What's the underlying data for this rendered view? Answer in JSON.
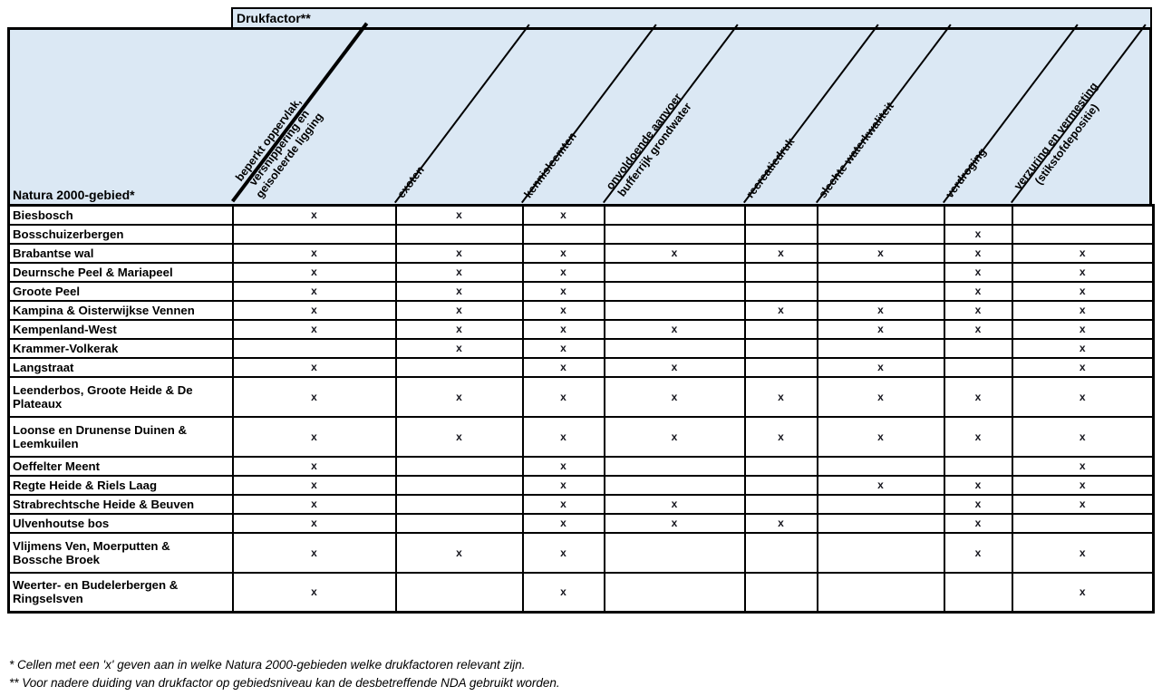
{
  "header": {
    "drukfactor_label": "Drukfactor**",
    "corner_label": "Natura 2000-gebied*"
  },
  "colors": {
    "header_fill": "#dbe8f4",
    "grid_border": "#000000",
    "page_background": "#ffffff"
  },
  "columns": [
    {
      "label_lines": [
        "beperkt oppervlak,",
        "versnippering en",
        "geisoleerde ligging"
      ]
    },
    {
      "label_lines": [
        "exoten"
      ]
    },
    {
      "label_lines": [
        "kennisleemten"
      ]
    },
    {
      "label_lines": [
        "onvoldoende aanvoer",
        "bufferrijk grondwater"
      ]
    },
    {
      "label_lines": [
        "recreatiedruk"
      ]
    },
    {
      "label_lines": [
        "slechte waterkwaliteit"
      ]
    },
    {
      "label_lines": [
        "verdroging"
      ]
    },
    {
      "label_lines": [
        "verzuring en vermesting",
        "(stikstofdepositie)"
      ]
    }
  ],
  "rows": [
    {
      "label_lines": [
        "Biesbosch"
      ],
      "marks": [
        "x",
        "x",
        "x",
        "",
        "",
        "",
        "",
        ""
      ]
    },
    {
      "label_lines": [
        "Bosschuizerbergen"
      ],
      "marks": [
        "",
        "",
        "",
        "",
        "",
        "",
        "x",
        ""
      ]
    },
    {
      "label_lines": [
        "Brabantse wal"
      ],
      "marks": [
        "x",
        "x",
        "x",
        "x",
        "x",
        "x",
        "x",
        "x"
      ]
    },
    {
      "label_lines": [
        "Deurnsche Peel & Mariapeel"
      ],
      "marks": [
        "x",
        "x",
        "x",
        "",
        "",
        "",
        "x",
        "x"
      ]
    },
    {
      "label_lines": [
        "Groote Peel"
      ],
      "marks": [
        "x",
        "x",
        "x",
        "",
        "",
        "",
        "x",
        "x"
      ]
    },
    {
      "label_lines": [
        "Kampina & Oisterwijkse Vennen"
      ],
      "marks": [
        "x",
        "x",
        "x",
        "",
        "x",
        "x",
        "x",
        "x"
      ]
    },
    {
      "label_lines": [
        "Kempenland-West"
      ],
      "marks": [
        "x",
        "x",
        "x",
        "x",
        "",
        "x",
        "x",
        "x"
      ]
    },
    {
      "label_lines": [
        "Krammer-Volkerak"
      ],
      "marks": [
        "",
        "x",
        "x",
        "",
        "",
        "",
        "",
        "x"
      ]
    },
    {
      "label_lines": [
        "Langstraat"
      ],
      "marks": [
        "x",
        "",
        "x",
        "x",
        "",
        "x",
        "",
        "x"
      ]
    },
    {
      "label_lines": [
        "Leenderbos, Groote Heide & De",
        "Plateaux"
      ],
      "marks": [
        "x",
        "x",
        "x",
        "x",
        "x",
        "x",
        "x",
        "x"
      ]
    },
    {
      "label_lines": [
        "Loonse en Drunense Duinen &",
        "Leemkuilen"
      ],
      "marks": [
        "x",
        "x",
        "x",
        "x",
        "x",
        "x",
        "x",
        "x"
      ]
    },
    {
      "label_lines": [
        "Oeffelter Meent"
      ],
      "marks": [
        "x",
        "",
        "x",
        "",
        "",
        "",
        "",
        "x"
      ]
    },
    {
      "label_lines": [
        "Regte Heide & Riels Laag"
      ],
      "marks": [
        "x",
        "",
        "x",
        "",
        "",
        "x",
        "x",
        "x"
      ]
    },
    {
      "label_lines": [
        "Strabrechtsche Heide & Beuven"
      ],
      "marks": [
        "x",
        "",
        "x",
        "x",
        "",
        "",
        "x",
        "x"
      ]
    },
    {
      "label_lines": [
        "Ulvenhoutse bos"
      ],
      "marks": [
        "x",
        "",
        "x",
        "x",
        "x",
        "",
        "x",
        ""
      ]
    },
    {
      "label_lines": [
        "Vlijmens Ven, Moerputten &",
        "Bossche Broek"
      ],
      "marks": [
        "x",
        "x",
        "x",
        "",
        "",
        "",
        "x",
        "x"
      ]
    },
    {
      "label_lines": [
        "Weerter- en Budelerbergen &",
        "Ringselsven"
      ],
      "marks": [
        "x",
        "",
        "x",
        "",
        "",
        "",
        "",
        "x"
      ]
    }
  ],
  "footnotes": [
    "* Cellen met een 'x' geven aan in welke Natura 2000-gebieden welke drukfactoren relevant zijn.",
    "** Voor nadere duiding van drukfactor op gebiedsniveau kan de desbetreffende NDA gebruikt worden."
  ]
}
